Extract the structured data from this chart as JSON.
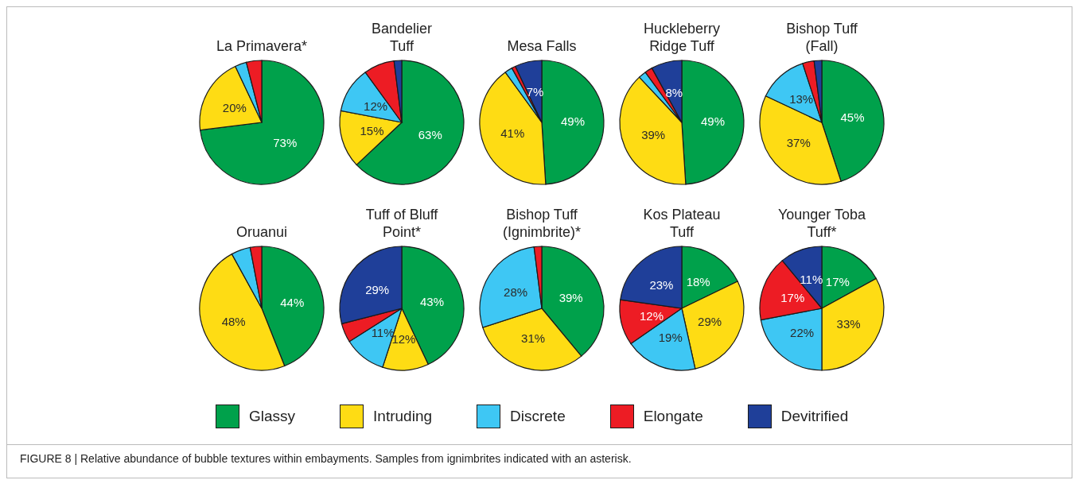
{
  "chart_data": [
    {
      "type": "pie",
      "title": "La Primavera*",
      "categories": [
        "Glassy",
        "Intruding",
        "Discrete",
        "Elongate",
        "Devitrified"
      ],
      "values": [
        73,
        20,
        3,
        4,
        0
      ],
      "colors": [
        "#00a14b",
        "#fedc14",
        "#3ec7f4",
        "#ed1c24",
        "#1f3f99"
      ],
      "value_labels": [
        "73%",
        "20%",
        null,
        null,
        null
      ],
      "legend": "bottom",
      "annotations": [
        "FIGURE 8 | Relative abundance of bubble textures within embayments. Samples from ignimbrites indicated with an asterisk."
      ]
    },
    {
      "type": "pie",
      "title": "Bandelier\nTuff",
      "categories": [
        null,
        null,
        null,
        null,
        null
      ],
      "values": [
        63,
        15,
        12,
        8,
        2
      ],
      "colors": [
        "#00a14b",
        "#fedc14",
        "#3ec7f4",
        "#ed1c24",
        "#1f3f99"
      ],
      "value_labels": [
        "63%",
        "15%",
        "12%",
        null,
        null
      ]
    },
    {
      "type": "pie",
      "title": "Mesa Falls",
      "categories": [
        null,
        null,
        null,
        null,
        null
      ],
      "values": [
        49,
        41,
        2,
        1,
        7
      ],
      "colors": [
        "#00a14b",
        "#fedc14",
        "#3ec7f4",
        "#ed1c24",
        "#1f3f99"
      ],
      "value_labels": [
        "49%",
        "41%",
        null,
        null,
        "7%"
      ]
    },
    {
      "type": "pie",
      "title": "Huckleberry\nRidge Tuff",
      "categories": [
        null,
        null,
        null,
        null,
        null
      ],
      "values": [
        49,
        39,
        2,
        2,
        8
      ],
      "colors": [
        "#00a14b",
        "#fedc14",
        "#3ec7f4",
        "#ed1c24",
        "#1f3f99"
      ],
      "value_labels": [
        "49%",
        "39%",
        null,
        null,
        "8%"
      ]
    },
    {
      "type": "pie",
      "title": "Bishop Tuff\n(Fall)",
      "categories": [
        null,
        null,
        null,
        null,
        null
      ],
      "values": [
        45,
        37,
        13,
        3,
        2
      ],
      "colors": [
        "#00a14b",
        "#fedc14",
        "#3ec7f4",
        "#ed1c24",
        "#1f3f99"
      ],
      "value_labels": [
        "45%",
        "37%",
        "13%",
        null,
        null
      ]
    },
    {
      "type": "pie",
      "title": "Oruanui",
      "categories": [
        null,
        null,
        null,
        null,
        null
      ],
      "values": [
        44,
        48,
        5,
        3,
        0
      ],
      "colors": [
        "#00a14b",
        "#fedc14",
        "#3ec7f4",
        "#ed1c24",
        "#1f3f99"
      ],
      "value_labels": [
        "44%",
        "48%",
        null,
        null,
        null
      ]
    },
    {
      "type": "pie",
      "title": "Tuff of Bluff\nPoint*",
      "categories": [
        null,
        null,
        null,
        null,
        null
      ],
      "values": [
        43,
        12,
        11,
        5,
        29
      ],
      "colors": [
        "#00a14b",
        "#fedc14",
        "#3ec7f4",
        "#ed1c24",
        "#1f3f99"
      ],
      "value_labels": [
        "43%",
        "12%",
        "11%",
        null,
        "29%"
      ]
    },
    {
      "type": "pie",
      "title": "Bishop Tuff\n(Ignimbrite)*",
      "categories": [
        null,
        null,
        null,
        null,
        null
      ],
      "values": [
        39,
        31,
        28,
        2,
        0
      ],
      "colors": [
        "#00a14b",
        "#fedc14",
        "#3ec7f4",
        "#ed1c24",
        "#1f3f99"
      ],
      "value_labels": [
        "39%",
        "31%",
        "28%",
        null,
        null
      ]
    },
    {
      "type": "pie",
      "title": "Kos Plateau\nTuff",
      "categories": [
        null,
        null,
        null,
        null,
        null
      ],
      "values": [
        18,
        29,
        19,
        12,
        23
      ],
      "colors": [
        "#00a14b",
        "#fedc14",
        "#3ec7f4",
        "#ed1c24",
        "#1f3f99"
      ],
      "value_labels": [
        "18%",
        "29%",
        "19%",
        "12%",
        "23%"
      ]
    },
    {
      "type": "pie",
      "title": "Younger Toba\nTuff*",
      "categories": [
        null,
        null,
        null,
        null,
        null
      ],
      "values": [
        17,
        33,
        22,
        17,
        11
      ],
      "colors": [
        "#00a14b",
        "#fedc14",
        "#3ec7f4",
        "#ed1c24",
        "#1f3f99"
      ],
      "value_labels": [
        "17%",
        "33%",
        "22%",
        "17%",
        "11%"
      ]
    }
  ]
}
